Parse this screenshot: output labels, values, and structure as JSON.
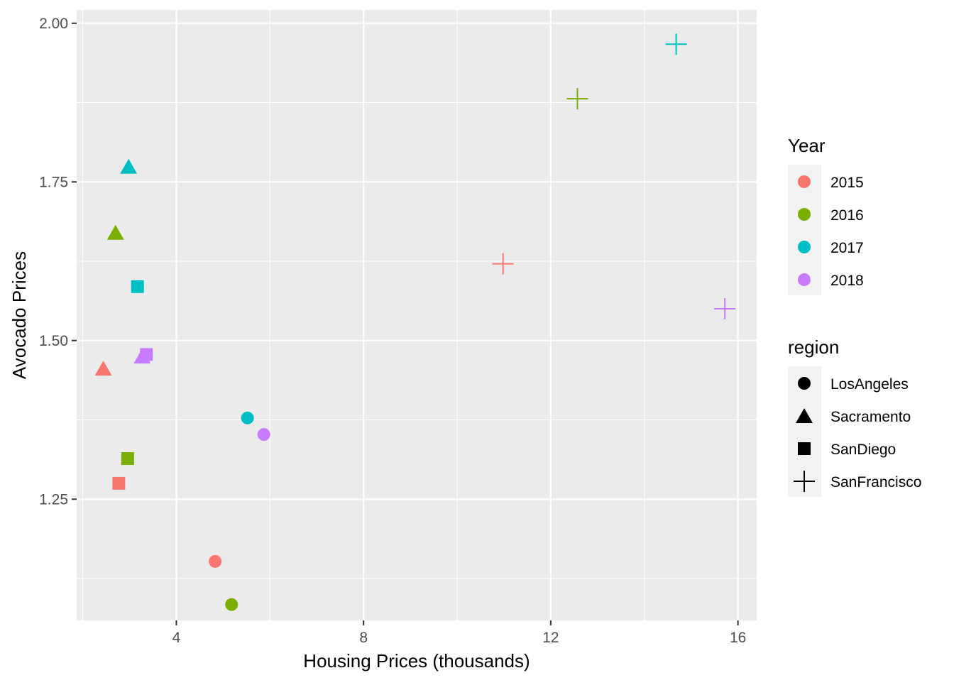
{
  "chart_data": {
    "type": "scatter",
    "title": "",
    "xlabel": "Housing Prices (thousands)",
    "ylabel": "Avocado Prices",
    "xlim": [
      1.87,
      16.4
    ],
    "ylim": [
      1.059,
      2.021
    ],
    "x_ticks": [
      4,
      8,
      12,
      16
    ],
    "y_ticks": [
      1.25,
      1.5,
      1.75,
      2.0
    ],
    "x_tick_labels": [
      "4",
      "8",
      "12",
      "16"
    ],
    "y_tick_labels": [
      "1.25",
      "1.50",
      "1.75",
      "2.00"
    ],
    "grid": true,
    "color_legend": {
      "title": "Year",
      "entries": [
        {
          "label": "2015",
          "color": "#F8766D"
        },
        {
          "label": "2016",
          "color": "#7CAE00"
        },
        {
          "label": "2017",
          "color": "#00BFC4"
        },
        {
          "label": "2018",
          "color": "#C77CFF"
        }
      ]
    },
    "shape_legend": {
      "title": "region",
      "entries": [
        {
          "label": "LosAngeles",
          "shape": "circle"
        },
        {
          "label": "Sacramento",
          "shape": "triangle"
        },
        {
          "label": "SanDiego",
          "shape": "square"
        },
        {
          "label": "SanFrancisco",
          "shape": "plus"
        }
      ]
    },
    "points": [
      {
        "x": 4.83,
        "y": 1.152,
        "year": "2015",
        "region": "LosAngeles"
      },
      {
        "x": 5.18,
        "y": 1.084,
        "year": "2016",
        "region": "LosAngeles"
      },
      {
        "x": 5.52,
        "y": 1.378,
        "year": "2017",
        "region": "LosAngeles"
      },
      {
        "x": 5.87,
        "y": 1.352,
        "year": "2018",
        "region": "LosAngeles"
      },
      {
        "x": 2.44,
        "y": 1.456,
        "year": "2015",
        "region": "Sacramento"
      },
      {
        "x": 2.7,
        "y": 1.67,
        "year": "2016",
        "region": "Sacramento"
      },
      {
        "x": 2.98,
        "y": 1.774,
        "year": "2017",
        "region": "Sacramento"
      },
      {
        "x": 3.27,
        "y": 1.475,
        "year": "2018",
        "region": "Sacramento"
      },
      {
        "x": 2.77,
        "y": 1.275,
        "year": "2015",
        "region": "SanDiego"
      },
      {
        "x": 2.96,
        "y": 1.314,
        "year": "2016",
        "region": "SanDiego"
      },
      {
        "x": 3.17,
        "y": 1.585,
        "year": "2017",
        "region": "SanDiego"
      },
      {
        "x": 3.36,
        "y": 1.478,
        "year": "2018",
        "region": "SanDiego"
      },
      {
        "x": 10.98,
        "y": 1.621,
        "year": "2015",
        "region": "SanFrancisco"
      },
      {
        "x": 12.57,
        "y": 1.881,
        "year": "2016",
        "region": "SanFrancisco"
      },
      {
        "x": 14.68,
        "y": 1.967,
        "year": "2017",
        "region": "SanFrancisco"
      },
      {
        "x": 15.72,
        "y": 1.55,
        "year": "2018",
        "region": "SanFrancisco"
      }
    ]
  }
}
